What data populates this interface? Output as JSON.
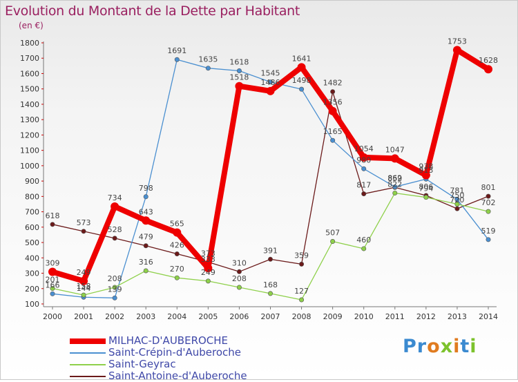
{
  "title": "Evolution du Montant de la Dette par Habitant",
  "subtitle": "(en €)",
  "logo": {
    "text": "Proxiti",
    "letters": [
      "P",
      "r",
      "o",
      "x",
      "i",
      "t",
      "i"
    ],
    "colors": [
      "#3b8ad0",
      "#3b8ad0",
      "#e07b20",
      "#7cc22c",
      "#e07b20",
      "#3b8ad0",
      "#7cc22c"
    ]
  },
  "chart_data": {
    "type": "line",
    "title": "Evolution du Montant de la Dette par Habitant",
    "ylabel": "(en €)",
    "xlabel": "",
    "x": [
      "2000",
      "2001",
      "2002",
      "2003",
      "2004",
      "2005",
      "2006",
      "2007",
      "2008",
      "2009",
      "2010",
      "2011",
      "2012",
      "2013",
      "2014"
    ],
    "ylim": [
      100,
      1800
    ],
    "yticks": [
      100,
      200,
      300,
      400,
      500,
      600,
      700,
      800,
      900,
      1000,
      1100,
      1200,
      1300,
      1400,
      1500,
      1600,
      1700,
      1800
    ],
    "grid": false,
    "legend_position": "bottom-left",
    "series": [
      {
        "name": "MILHAC-D'AUBEROCHE",
        "color": "#ee0000",
        "values": [
          309,
          249,
          734,
          643,
          565,
          333,
          1518,
          1486,
          1641,
          1356,
          1054,
          1047,
          938,
          1753,
          1628
        ]
      },
      {
        "name": "Saint-Crépin-d'Auberoche",
        "color": "#4a8fd0",
        "values": [
          166,
          144,
          139,
          798,
          1691,
          1635,
          1618,
          1545,
          1498,
          1165,
          980,
          862,
          913,
          781,
          519
        ]
      },
      {
        "name": "Saint-Geyrac",
        "color": "#8ed04a",
        "values": [
          201,
          158,
          208,
          316,
          270,
          249,
          208,
          168,
          127,
          507,
          460,
          822,
          794,
          750,
          702
        ]
      },
      {
        "name": "Saint-Antoine-d'Auberoche",
        "color": "#6b1a1a",
        "values": [
          618,
          573,
          528,
          479,
          426,
          373,
          310,
          391,
          359,
          1482,
          817,
          859,
          806,
          720,
          801
        ]
      }
    ]
  }
}
